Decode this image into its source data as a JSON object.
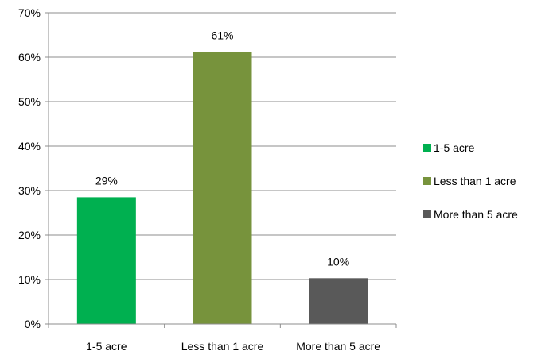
{
  "chart_data": {
    "type": "bar",
    "title": "",
    "xlabel": "",
    "ylabel": "",
    "categories": [
      "1-5 acre",
      "Less than 1 acre",
      "More than 5 acre"
    ],
    "values": [
      29,
      61,
      10
    ],
    "bar_heights": [
      28.5,
      61.2,
      10.3
    ],
    "data_labels": [
      "29%",
      "61%",
      "10%"
    ],
    "colors": [
      "#00b050",
      "#77933c",
      "#595959"
    ],
    "ylim": [
      0,
      70
    ],
    "y_ticks": [
      0,
      10,
      20,
      30,
      40,
      50,
      60,
      70
    ],
    "y_tick_labels": [
      "0%",
      "10%",
      "20%",
      "30%",
      "40%",
      "50%",
      "60%",
      "70%"
    ],
    "grid": true,
    "legend": {
      "position": "right",
      "entries": [
        "1-5 acre",
        "Less than 1 acre",
        "More than 5 acre"
      ]
    }
  }
}
